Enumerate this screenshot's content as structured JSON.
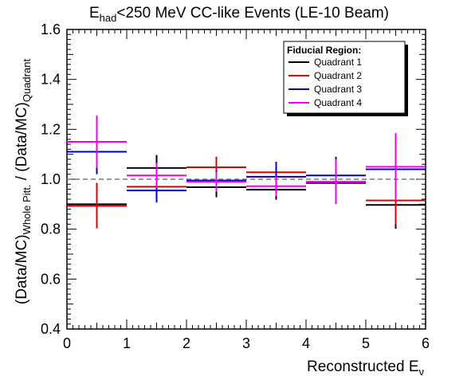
{
  "chart_data": {
    "type": "scatter",
    "title_main": "E",
    "title_sub": "had",
    "title_rest": "<250 MeV CC-like Events (LE-10 Beam)",
    "xlabel_main": "Reconstructed E",
    "xlabel_sub": "ν",
    "ylabel_part1": "(Data/MC)",
    "ylabel_sub1": "Whole Pitt.",
    "ylabel_part2": " / (Data/MC)",
    "ylabel_sub2": "Quadrant",
    "xlim": [
      0,
      6
    ],
    "ylim": [
      0.4,
      1.6
    ],
    "xticks": [
      "0",
      "1",
      "2",
      "3",
      "4",
      "5",
      "6"
    ],
    "yticks": [
      "0.4",
      "0.6",
      "0.8",
      "1.0",
      "1.2",
      "1.4",
      "1.6"
    ],
    "reference_line": 1.0,
    "legend": {
      "title": "Fiducial Region:",
      "placement": "top-right"
    },
    "series": [
      {
        "name": "Quadrant 1",
        "color": "#000000",
        "points": [
          {
            "x": 0.5,
            "xerr": 0.5,
            "y": 0.9,
            "yerr": 0.085
          },
          {
            "x": 1.5,
            "xerr": 0.5,
            "y": 1.045,
            "yerr": 0.052
          },
          {
            "x": 2.5,
            "xerr": 0.5,
            "y": 0.968,
            "yerr": 0.04
          },
          {
            "x": 3.5,
            "xerr": 0.5,
            "y": 0.958,
            "yerr": 0.04
          },
          {
            "x": 4.5,
            "xerr": 0.5,
            "y": 0.985,
            "yerr": 0.04
          },
          {
            "x": 5.5,
            "xerr": 0.5,
            "y": 0.897,
            "yerr": 0.095
          }
        ]
      },
      {
        "name": "Quadrant 2",
        "color": "#e00000",
        "points": [
          {
            "x": 0.5,
            "xerr": 0.5,
            "y": 0.893,
            "yerr": 0.09
          },
          {
            "x": 1.5,
            "xerr": 0.5,
            "y": 0.97,
            "yerr": 0.05
          },
          {
            "x": 2.5,
            "xerr": 0.5,
            "y": 1.048,
            "yerr": 0.042
          },
          {
            "x": 3.5,
            "xerr": 0.5,
            "y": 1.028,
            "yerr": 0.04
          },
          {
            "x": 4.5,
            "xerr": 0.5,
            "y": 0.988,
            "yerr": 0.04
          },
          {
            "x": 5.5,
            "xerr": 0.5,
            "y": 0.915,
            "yerr": 0.095
          }
        ]
      },
      {
        "name": "Quadrant 3",
        "color": "#0000c0",
        "points": [
          {
            "x": 0.5,
            "xerr": 0.5,
            "y": 1.11,
            "yerr": 0.09
          },
          {
            "x": 1.5,
            "xerr": 0.5,
            "y": 0.955,
            "yerr": 0.048
          },
          {
            "x": 2.5,
            "xerr": 0.5,
            "y": 0.995,
            "yerr": 0.04
          },
          {
            "x": 3.5,
            "xerr": 0.5,
            "y": 1.01,
            "yerr": 0.06
          },
          {
            "x": 4.5,
            "xerr": 0.5,
            "y": 1.015,
            "yerr": 0.075
          },
          {
            "x": 5.5,
            "xerr": 0.5,
            "y": 1.04,
            "yerr": 0.095
          }
        ]
      },
      {
        "name": "Quadrant 4",
        "color": "#ee00ee",
        "points": [
          {
            "x": 0.5,
            "xerr": 0.5,
            "y": 1.15,
            "yerr": 0.105
          },
          {
            "x": 1.5,
            "xerr": 0.5,
            "y": 1.015,
            "yerr": 0.05
          },
          {
            "x": 2.5,
            "xerr": 0.5,
            "y": 0.99,
            "yerr": 0.04
          },
          {
            "x": 3.5,
            "xerr": 0.5,
            "y": 0.972,
            "yerr": 0.04
          },
          {
            "x": 4.5,
            "xerr": 0.5,
            "y": 0.99,
            "yerr": 0.09
          },
          {
            "x": 5.5,
            "xerr": 0.5,
            "y": 1.05,
            "yerr": 0.135
          }
        ]
      }
    ]
  }
}
